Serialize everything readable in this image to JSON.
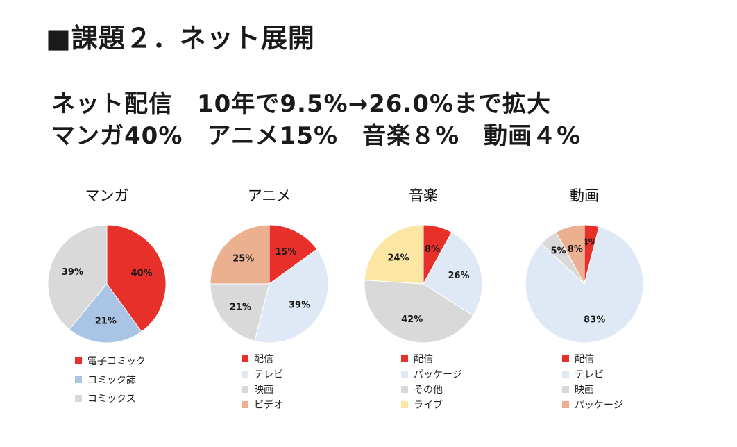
{
  "page": {
    "title": "■課題２．ネット展開",
    "headline_line1": "ネット配信　10年で9.5%→26.0%まで拡大",
    "headline_line2": "マンガ40%　アニメ15%　音楽８%　動画４%"
  },
  "colors": {
    "red": "#e8302a",
    "light_blue": "#a9c4e4",
    "pale_blue": "#dfe9f5",
    "gray": "#d9d9d9",
    "salmon": "#ebb08f",
    "yellow": "#fbe6a4"
  },
  "chart_data": [
    {
      "type": "pie",
      "title": "マンガ",
      "categories": [
        "電子コミック",
        "コミック誌",
        "コミックス"
      ],
      "values": [
        40,
        21,
        39
      ],
      "labels": [
        "40%",
        "21%",
        "39%"
      ],
      "colors": [
        "#e8302a",
        "#a9c4e4",
        "#d9d9d9"
      ],
      "legend": "bottom"
    },
    {
      "type": "pie",
      "title": "アニメ",
      "categories": [
        "配信",
        "テレビ",
        "映画",
        "ビデオ"
      ],
      "values": [
        15,
        39,
        21,
        25
      ],
      "labels": [
        "15%",
        "39%",
        "21%",
        "25%"
      ],
      "colors": [
        "#e8302a",
        "#dfe9f5",
        "#d9d9d9",
        "#ebb08f"
      ],
      "legend": "bottom"
    },
    {
      "type": "pie",
      "title": "音楽",
      "categories": [
        "配信",
        "パッケージ",
        "その他",
        "ライブ"
      ],
      "values": [
        8,
        26,
        42,
        24
      ],
      "labels": [
        "8%",
        "26%",
        "42%",
        "24%"
      ],
      "colors": [
        "#e8302a",
        "#dfe9f5",
        "#d9d9d9",
        "#fbe6a4"
      ],
      "legend": "bottom"
    },
    {
      "type": "pie",
      "title": "動画",
      "categories": [
        "配信",
        "テレビ",
        "映画",
        "パッケージ"
      ],
      "values": [
        4,
        83,
        5,
        8
      ],
      "labels": [
        "4%",
        "83%",
        "5%",
        "8%"
      ],
      "colors": [
        "#e8302a",
        "#dfe9f5",
        "#d9d9d9",
        "#ebb08f"
      ],
      "legend": "bottom"
    }
  ]
}
